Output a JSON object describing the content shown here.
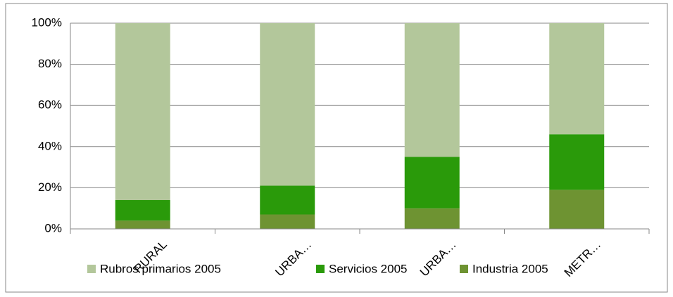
{
  "chart_data": {
    "type": "stacked_bar_100",
    "categories": [
      "RURAL",
      "URBA…",
      "URBA…",
      "METR…"
    ],
    "series": [
      {
        "name": "Rubros primarios 2005",
        "color": "#b3c79b",
        "values": [
          86,
          79,
          65,
          54
        ]
      },
      {
        "name": "Servicios 2005",
        "color": "#2a9a0a",
        "values": [
          10,
          14,
          25,
          27
        ]
      },
      {
        "name": "Industria 2005",
        "color": "#6e9332",
        "values": [
          4,
          7,
          10,
          19
        ]
      }
    ],
    "ylim": [
      0,
      100
    ],
    "yticks": [
      {
        "value": 0,
        "label": "0%"
      },
      {
        "value": 20,
        "label": "20%"
      },
      {
        "value": 40,
        "label": "40%"
      },
      {
        "value": 60,
        "label": "60%"
      },
      {
        "value": 80,
        "label": "80%"
      },
      {
        "value": 100,
        "label": "100%"
      }
    ],
    "grid": true,
    "legend": "bottom"
  }
}
